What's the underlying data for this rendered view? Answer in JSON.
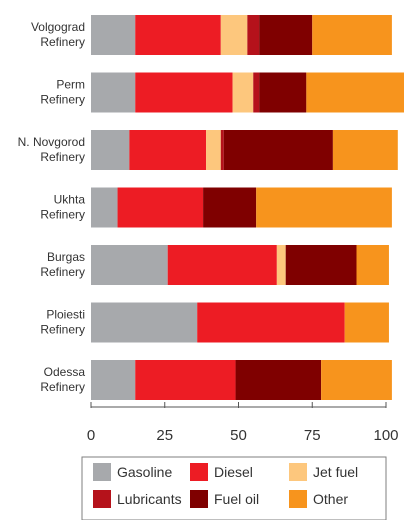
{
  "chart_data": {
    "type": "bar",
    "orientation": "horizontal",
    "stacked": true,
    "categories": [
      [
        "Volgograd",
        "Refinery"
      ],
      [
        "Perm",
        "Refinery"
      ],
      [
        "N. Novgorod",
        "Refinery"
      ],
      [
        "Ukhta",
        "Refinery"
      ],
      [
        "Burgas",
        "Refinery"
      ],
      [
        "Ploiesti",
        "Refinery"
      ],
      [
        "Odessa",
        "Refinery"
      ]
    ],
    "series": [
      {
        "name": "Gasoline",
        "color": "#a7a9ac",
        "values": [
          15,
          15,
          13,
          9,
          26,
          36,
          15
        ]
      },
      {
        "name": "Diesel",
        "color": "#ed1c24",
        "values": [
          29,
          33,
          26,
          29,
          37,
          50,
          34
        ]
      },
      {
        "name": "Jet fuel",
        "color": "#fdc77d",
        "values": [
          9,
          7,
          5,
          0,
          3,
          0,
          0
        ]
      },
      {
        "name": "Lubricants",
        "color": "#b5121b",
        "values": [
          4,
          2,
          1,
          0,
          0,
          0,
          0
        ]
      },
      {
        "name": "Fuel oil",
        "color": "#7f0000",
        "values": [
          18,
          16,
          37,
          18,
          24,
          0,
          29
        ]
      },
      {
        "name": "Other",
        "color": "#f7941d",
        "values": [
          27,
          34,
          22,
          46,
          11,
          15,
          24
        ]
      }
    ],
    "xlim": [
      0,
      100
    ],
    "xticks": [
      0,
      25,
      50,
      75,
      100
    ],
    "title": "",
    "xlabel": "",
    "ylabel": "",
    "grid": false,
    "legend": "bottom"
  }
}
